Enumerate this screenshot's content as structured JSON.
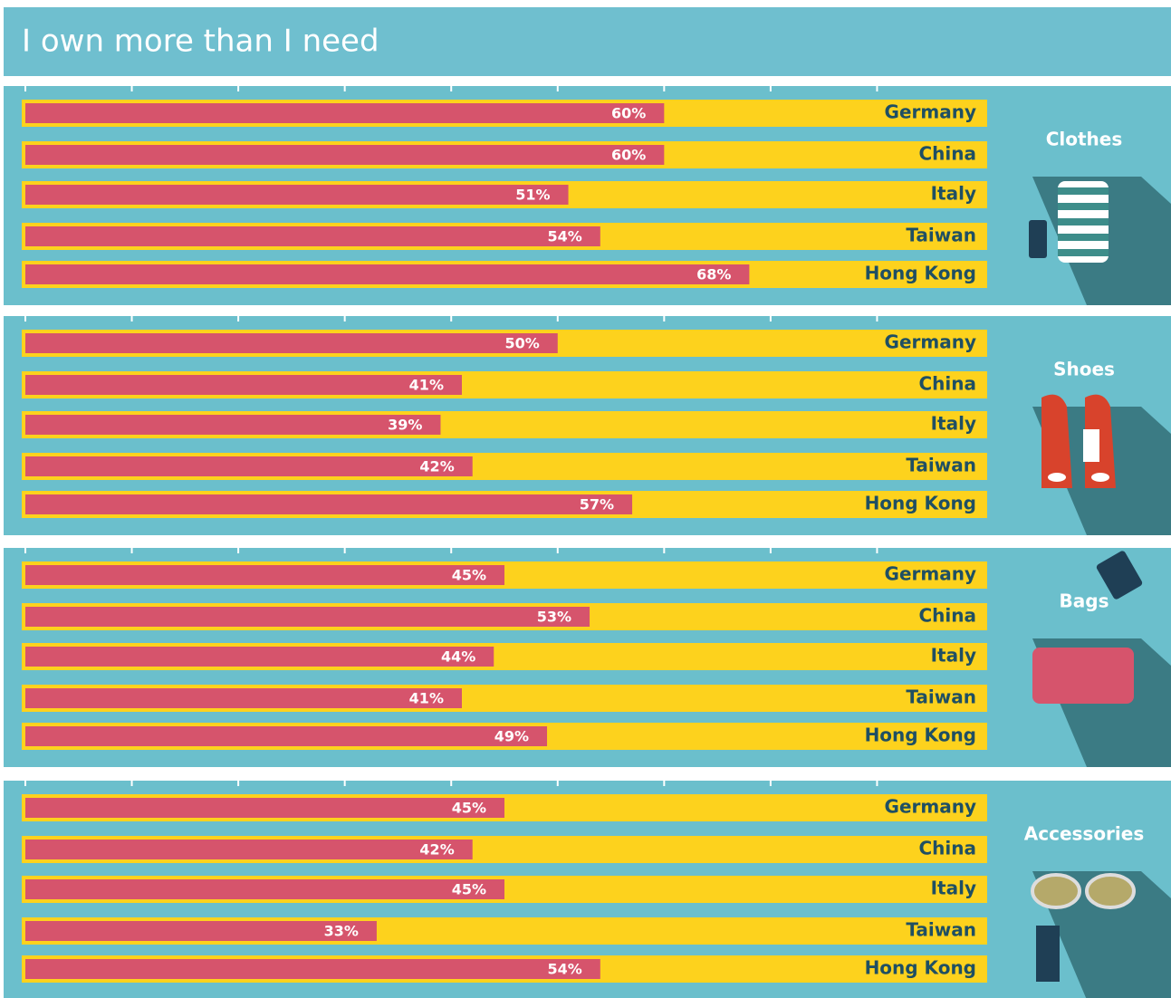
{
  "title": "I own more than I need",
  "chart_data": [
    {
      "type": "bar",
      "orientation": "horizontal",
      "title": "Clothes",
      "categories": [
        "Germany",
        "China",
        "Italy",
        "Taiwan",
        "Hong Kong"
      ],
      "values": [
        60,
        60,
        51,
        54,
        68
      ],
      "value_labels": [
        "60%",
        "60%",
        "51%",
        "54%",
        "68%"
      ],
      "color": "#d6546c",
      "xlim": [
        0,
        90
      ],
      "xticks": [
        0,
        10,
        20,
        30,
        40,
        50,
        60,
        70,
        80
      ]
    },
    {
      "type": "bar",
      "orientation": "horizontal",
      "title": "Shoes",
      "categories": [
        "Germany",
        "China",
        "Italy",
        "Taiwan",
        "Hong Kong"
      ],
      "values": [
        50,
        41,
        39,
        42,
        57
      ],
      "value_labels": [
        "50%",
        "41%",
        "39%",
        "42%",
        "57%"
      ],
      "color": "#d6546c",
      "xlim": [
        0,
        90
      ],
      "xticks": [
        0,
        10,
        20,
        30,
        40,
        50,
        60,
        70,
        80
      ]
    },
    {
      "type": "bar",
      "orientation": "horizontal",
      "title": "Bags",
      "categories": [
        "Germany",
        "China",
        "Italy",
        "Taiwan",
        "Hong Kong"
      ],
      "values": [
        45,
        53,
        44,
        41,
        49
      ],
      "value_labels": [
        "45%",
        "53%",
        "44%",
        "41%",
        "49%"
      ],
      "color": "#d6546c",
      "xlim": [
        0,
        90
      ],
      "xticks": [
        0,
        10,
        20,
        30,
        40,
        50,
        60,
        70,
        80
      ]
    },
    {
      "type": "bar",
      "orientation": "horizontal",
      "title": "Accessories",
      "categories": [
        "Germany",
        "China",
        "Italy",
        "Taiwan",
        "Hong Kong"
      ],
      "values": [
        45,
        42,
        45,
        33,
        54
      ],
      "value_labels": [
        "45%",
        "42%",
        "45%",
        "33%",
        "54%"
      ],
      "color": "#d6546c",
      "xlim": [
        0,
        90
      ],
      "xticks": [
        0,
        10,
        20,
        30,
        40,
        50,
        60,
        70,
        80
      ]
    }
  ]
}
